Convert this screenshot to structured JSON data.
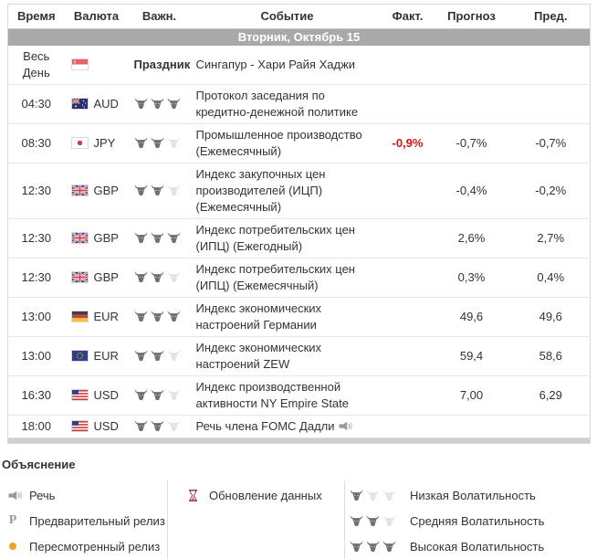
{
  "table": {
    "headers": [
      "Время",
      "Валюта",
      "Важн.",
      "Событие",
      "Факт.",
      "Прогноз",
      "Пред."
    ],
    "date_header": "Вторник, Октябрь 15",
    "rows": [
      {
        "time": "Весь День",
        "flag": "sg",
        "currency": "",
        "importance_text": "Праздник",
        "bulls": null,
        "event": "Сингапур - Хари Райя Хаджи",
        "speech": false,
        "actual": "",
        "actual_red": false,
        "forecast": "",
        "previous": ""
      },
      {
        "time": "04:30",
        "flag": "au",
        "currency": "AUD",
        "importance_text": "",
        "bulls": 3,
        "event": "Протокол заседания по кредитно-денежной политике",
        "speech": false,
        "actual": "",
        "actual_red": false,
        "forecast": "",
        "previous": ""
      },
      {
        "time": "08:30",
        "flag": "jp",
        "currency": "JPY",
        "importance_text": "",
        "bulls": 2,
        "event": "Промышленное производство (Ежемесячный)",
        "speech": false,
        "actual": "-0,9%",
        "actual_red": true,
        "forecast": "-0,7%",
        "previous": "-0,7%"
      },
      {
        "time": "12:30",
        "flag": "gb",
        "currency": "GBP",
        "importance_text": "",
        "bulls": 2,
        "event": "Индекс закупочных цен производителей (ИЦП) (Ежемесячный)",
        "speech": false,
        "actual": "",
        "actual_red": false,
        "forecast": "-0,4%",
        "previous": "-0,2%"
      },
      {
        "time": "12:30",
        "flag": "gb",
        "currency": "GBP",
        "importance_text": "",
        "bulls": 3,
        "event": "Индекс потребительских цен (ИПЦ) (Ежегодный)",
        "speech": false,
        "actual": "",
        "actual_red": false,
        "forecast": "2,6%",
        "previous": "2,7%"
      },
      {
        "time": "12:30",
        "flag": "gb",
        "currency": "GBP",
        "importance_text": "",
        "bulls": 2,
        "event": "Индекс потребительских цен (ИПЦ) (Ежемесячный)",
        "speech": false,
        "actual": "",
        "actual_red": false,
        "forecast": "0,3%",
        "previous": "0,4%"
      },
      {
        "time": "13:00",
        "flag": "de",
        "currency": "EUR",
        "importance_text": "",
        "bulls": 3,
        "event": "Индекс экономических настроений Германии",
        "speech": false,
        "actual": "",
        "actual_red": false,
        "forecast": "49,6",
        "previous": "49,6"
      },
      {
        "time": "13:00",
        "flag": "eu",
        "currency": "EUR",
        "importance_text": "",
        "bulls": 2,
        "event": "Индекс экономических настроений ZEW",
        "speech": false,
        "actual": "",
        "actual_red": false,
        "forecast": "59,4",
        "previous": "58,6"
      },
      {
        "time": "16:30",
        "flag": "us",
        "currency": "USD",
        "importance_text": "",
        "bulls": 2,
        "event": "Индекс производственной активности NY Empire State",
        "speech": false,
        "actual": "",
        "actual_red": false,
        "forecast": "7,00",
        "previous": "6,29"
      },
      {
        "time": "18:00",
        "flag": "us",
        "currency": "USD",
        "importance_text": "",
        "bulls": 2,
        "event": "Речь члена FOMC Дадли",
        "speech": true,
        "actual": "",
        "actual_red": false,
        "forecast": "",
        "previous": ""
      }
    ]
  },
  "legend": {
    "title": "Объяснение",
    "col1": [
      {
        "icon": "speech-icon",
        "label": "Речь"
      },
      {
        "icon": "preliminary-release-icon",
        "symbol": "P",
        "label": "Предварительный релиз"
      },
      {
        "icon": "revised-release-icon",
        "label": "Пересмотренный релиз"
      }
    ],
    "col2": [
      {
        "icon": "hourglass-icon",
        "label": "Обновление данных"
      }
    ],
    "col3": [
      {
        "bulls": 1,
        "label": "Низкая Волатильность"
      },
      {
        "bulls": 2,
        "label": "Средняя Волатильность"
      },
      {
        "bulls": 3,
        "label": "Высокая Волатильность"
      }
    ]
  },
  "colors": {
    "negative_actual": "#e11212",
    "date_band_bg": "#a9a9a9",
    "bull_active": "#717171",
    "bull_inactive": "#e3e3e3",
    "revised_dot": "#efa32a",
    "hourglass": "#8b2727"
  }
}
